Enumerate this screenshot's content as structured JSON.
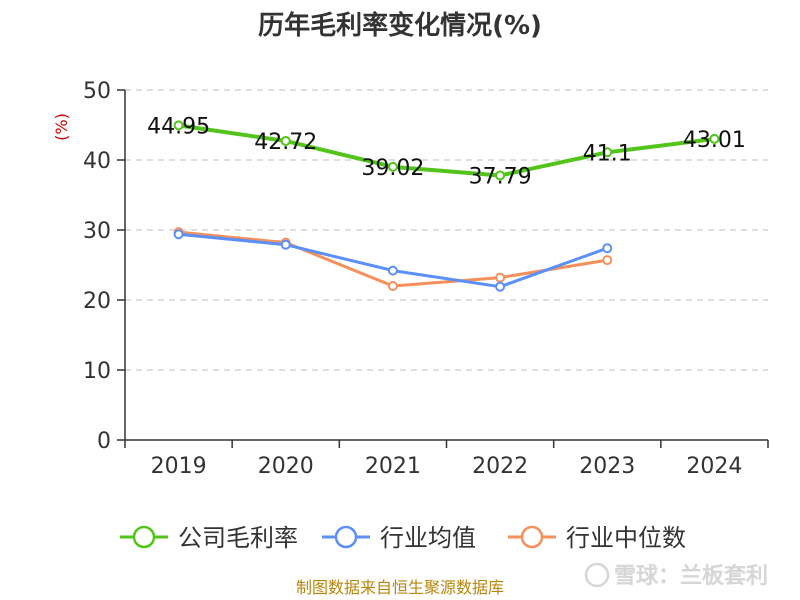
{
  "chart_data": {
    "type": "line",
    "title": "历年毛利率变化情况(%)",
    "ylabel": "(%)",
    "categories": [
      "2019",
      "2020",
      "2021",
      "2022",
      "2023",
      "2024"
    ],
    "ylim": [
      0,
      50
    ],
    "yticks": [
      "0",
      "10",
      "20",
      "30",
      "40",
      "50"
    ],
    "grid": true,
    "legend_position": "bottom",
    "series": [
      {
        "name": "公司毛利率",
        "color": "#52c41a",
        "values": [
          44.95,
          42.72,
          39.02,
          37.79,
          41.1,
          43.01
        ],
        "labels": [
          "44.95",
          "42.72",
          "39.02",
          "37.79",
          "41.1",
          "43.01"
        ]
      },
      {
        "name": "行业均值",
        "color": "#5b8ff9",
        "values": [
          29.4,
          27.9,
          24.2,
          21.9,
          27.4,
          null
        ]
      },
      {
        "name": "行业中位数",
        "color": "#f6905a",
        "values": [
          29.7,
          28.2,
          22.0,
          23.2,
          25.7,
          null
        ]
      }
    ]
  },
  "footer": {
    "source": "制图数据来自恒生聚源数据库",
    "watermark": "雪球：兰板套利"
  }
}
